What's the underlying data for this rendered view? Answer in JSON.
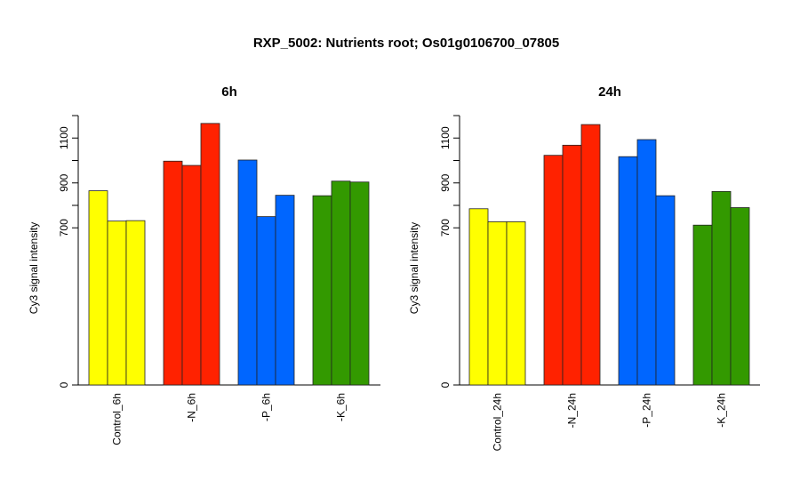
{
  "title": "RXP_5002: Nutrients root; Os01g0106700_07805",
  "colors": {
    "Control": "#ffff00",
    "N": "#ff2200",
    "P": "#0066ff",
    "K": "#339900"
  },
  "chart_data": [
    {
      "type": "bar",
      "title": "6h",
      "ylabel": "Cy3 signal intensity",
      "ylim": [
        0,
        1200
      ],
      "yticks": [
        0,
        700,
        900,
        1100
      ],
      "categories": [
        "Control_6h",
        "-N_6h",
        "-P_6h",
        "-K_6h"
      ],
      "category_colors": [
        "Control",
        "N",
        "P",
        "K"
      ],
      "values": [
        [
          865,
          730,
          732
        ],
        [
          997,
          978,
          1165
        ],
        [
          1002,
          750,
          845
        ],
        [
          843,
          908,
          904
        ]
      ]
    },
    {
      "type": "bar",
      "title": "24h",
      "ylabel": "Cy3 signal intensity",
      "ylim": [
        0,
        1200
      ],
      "yticks": [
        0,
        700,
        900,
        1100
      ],
      "categories": [
        "Control_24h",
        "-N_24h",
        "-P_24h",
        "-K_24h"
      ],
      "category_colors": [
        "Control",
        "N",
        "P",
        "K"
      ],
      "values": [
        [
          785,
          727,
          727
        ],
        [
          1023,
          1068,
          1160
        ],
        [
          1017,
          1093,
          843
        ],
        [
          712,
          862,
          790
        ]
      ]
    }
  ]
}
